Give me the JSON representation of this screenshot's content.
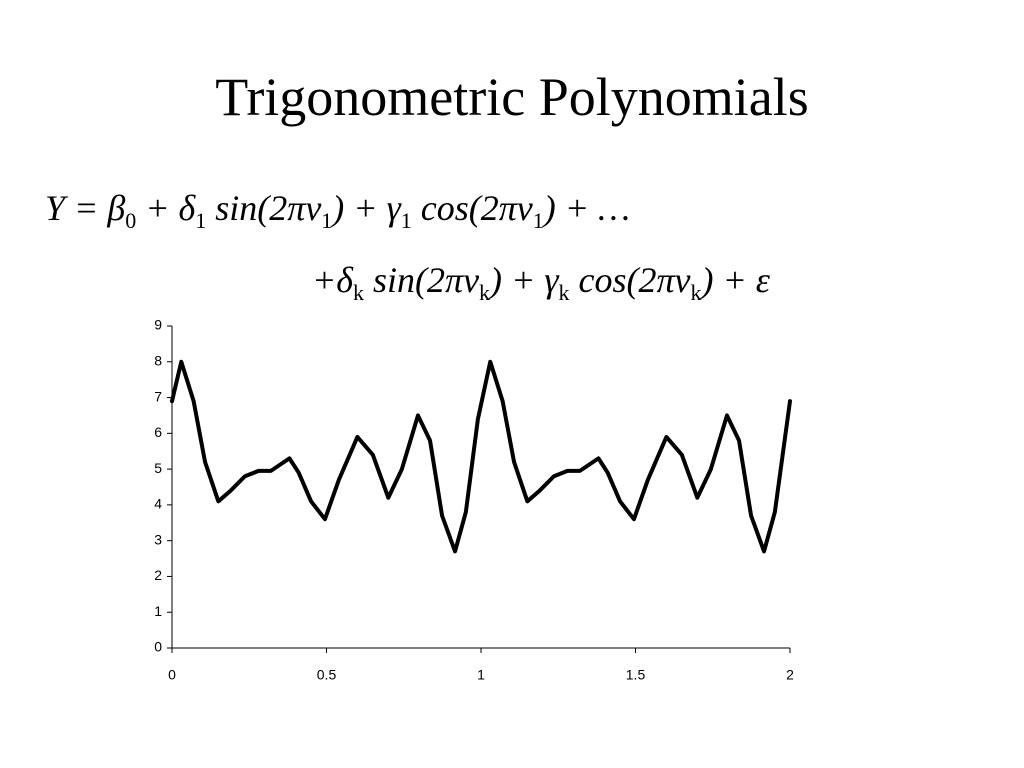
{
  "chart_data": {
    "type": "line",
    "title": "Trigonometric Polynomials",
    "formula": [
      [
        "Y = β",
        "0",
        " + δ",
        "1",
        " sin(2πν",
        "1",
        ") + γ",
        "1",
        " cos(2πν",
        "1",
        ") + …"
      ],
      [
        "+δ",
        "k",
        " sin(2πν",
        "k",
        ") + γ",
        "k",
        " cos(2πν",
        "k",
        ") + ε"
      ]
    ],
    "x": [
      0,
      0.03,
      0.07,
      0.107,
      0.15,
      0.19,
      0.236,
      0.28,
      0.32,
      0.38,
      0.41,
      0.45,
      0.495,
      0.54,
      0.6,
      0.65,
      0.7,
      0.744,
      0.796,
      0.835,
      0.874,
      0.916,
      0.951,
      0.99,
      1.03,
      1.07,
      1.107,
      1.15,
      1.19,
      1.236,
      1.28,
      1.32,
      1.38,
      1.41,
      1.45,
      1.495,
      1.54,
      1.6,
      1.65,
      1.7,
      1.744,
      1.796,
      1.835,
      1.874,
      1.916,
      1.951,
      2.0
    ],
    "series": [
      {
        "color": "#000000",
        "values": [
          6.9,
          8.0,
          6.9,
          5.2,
          4.1,
          4.4,
          4.8,
          4.95,
          4.95,
          5.3,
          4.9,
          4.1,
          3.6,
          4.7,
          5.9,
          5.4,
          4.2,
          5.0,
          6.5,
          5.8,
          3.7,
          2.7,
          3.8,
          6.4,
          8.0,
          6.9,
          5.2,
          4.1,
          4.4,
          4.8,
          4.95,
          4.95,
          5.3,
          4.9,
          4.1,
          3.6,
          4.7,
          5.9,
          5.4,
          4.2,
          5.0,
          6.5,
          5.8,
          3.7,
          2.7,
          3.8,
          6.9
        ]
      }
    ],
    "xlim": [
      0,
      2
    ],
    "xticks": [
      0,
      0.5,
      1,
      1.5,
      2
    ],
    "ylim": [
      0,
      9
    ],
    "yticks": [
      0,
      1,
      2,
      3,
      4,
      5,
      6,
      7,
      8,
      9
    ],
    "grid": false
  }
}
